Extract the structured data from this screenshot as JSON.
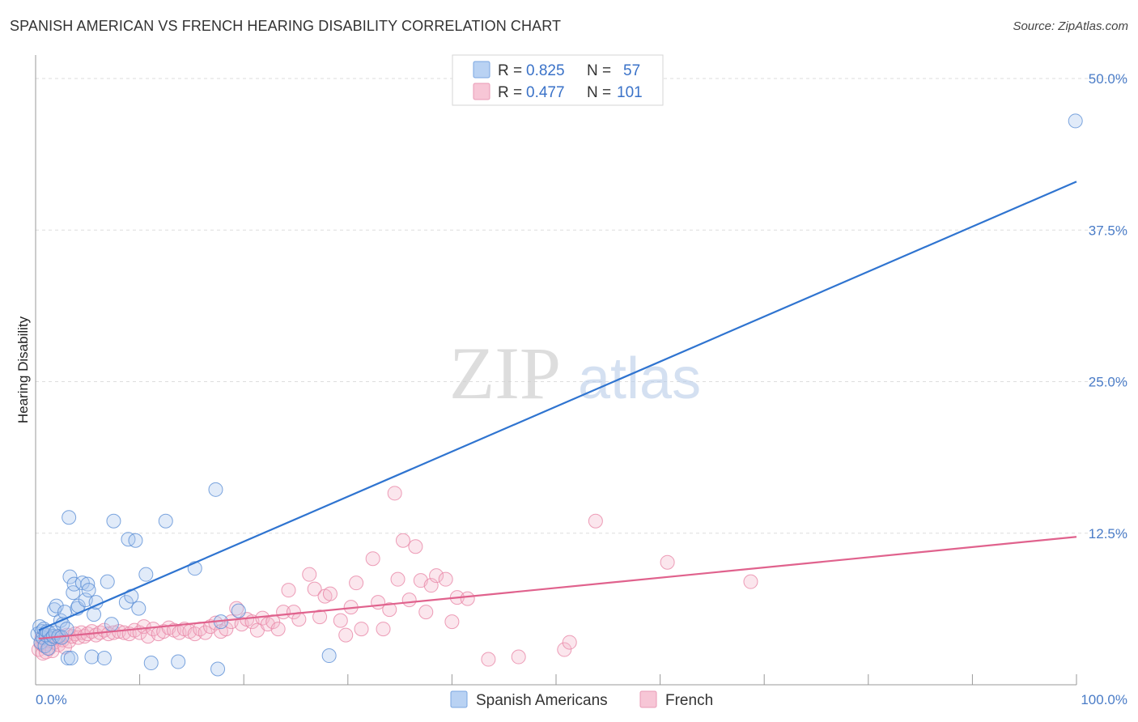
{
  "header": {
    "title": "SPANISH AMERICAN VS FRENCH HEARING DISABILITY CORRELATION CHART",
    "source": "Source: ZipAtlas.com"
  },
  "watermark": {
    "zip": "ZIP",
    "atlas": "atlas"
  },
  "colors": {
    "blue": "#5b8fd6",
    "blue_line": "#2f74d0",
    "pink": "#e886a6",
    "pink_line": "#e0628d",
    "axis_label": "#4a7cc7",
    "grid": "#dddddd"
  },
  "legend": {
    "rows": [
      {
        "r_label": "R =",
        "r_value": "0.825",
        "n_label": "N =",
        "n_value": "57"
      },
      {
        "r_label": "R =",
        "r_value": "0.477",
        "n_label": "N =",
        "n_value": "101"
      }
    ]
  },
  "bottom_legend": [
    "Spanish Americans",
    "French"
  ],
  "chart_data": {
    "type": "scatter",
    "title": "SPANISH AMERICAN VS FRENCH HEARING DISABILITY CORRELATION CHART",
    "xlabel": "",
    "ylabel": "Hearing Disability",
    "xlim": [
      0,
      100
    ],
    "ylim": [
      0,
      52
    ],
    "x_tick_labels": [
      "0.0%",
      "100.0%"
    ],
    "y_ticks": [
      12.5,
      25.0,
      37.5,
      50.0
    ],
    "y_tick_labels": [
      "12.5%",
      "25.0%",
      "37.5%",
      "50.0%"
    ],
    "series": [
      {
        "name": "Spanish Americans",
        "R": 0.825,
        "N": 57,
        "trend": {
          "x": [
            0.3,
            100
          ],
          "y": [
            4.5,
            41.5
          ]
        },
        "points": [
          [
            0.2,
            4.2
          ],
          [
            0.4,
            4.8
          ],
          [
            0.5,
            3.5
          ],
          [
            0.6,
            4.4
          ],
          [
            0.7,
            3.9
          ],
          [
            0.8,
            4.6
          ],
          [
            0.9,
            3.2
          ],
          [
            1.0,
            4.1
          ],
          [
            1.1,
            4.4
          ],
          [
            1.2,
            3.0
          ],
          [
            1.3,
            4.3
          ],
          [
            1.5,
            3.8
          ],
          [
            1.7,
            4.0
          ],
          [
            1.8,
            6.2
          ],
          [
            1.9,
            4.3
          ],
          [
            2.0,
            6.5
          ],
          [
            2.2,
            4.0
          ],
          [
            2.4,
            5.3
          ],
          [
            2.5,
            3.9
          ],
          [
            2.6,
            5.0
          ],
          [
            2.8,
            6.0
          ],
          [
            3.0,
            4.6
          ],
          [
            3.1,
            2.2
          ],
          [
            3.2,
            13.8
          ],
          [
            3.3,
            8.9
          ],
          [
            3.4,
            2.2
          ],
          [
            3.6,
            7.6
          ],
          [
            3.7,
            8.3
          ],
          [
            4.0,
            6.3
          ],
          [
            4.1,
            6.5
          ],
          [
            4.5,
            8.4
          ],
          [
            4.8,
            7.0
          ],
          [
            5.0,
            8.3
          ],
          [
            5.1,
            7.8
          ],
          [
            5.4,
            2.3
          ],
          [
            5.6,
            5.8
          ],
          [
            5.8,
            6.8
          ],
          [
            6.6,
            2.2
          ],
          [
            6.9,
            8.5
          ],
          [
            7.3,
            5.0
          ],
          [
            7.5,
            13.5
          ],
          [
            8.7,
            6.8
          ],
          [
            8.9,
            12.0
          ],
          [
            9.2,
            7.3
          ],
          [
            9.6,
            11.9
          ],
          [
            9.9,
            6.3
          ],
          [
            10.6,
            9.1
          ],
          [
            11.1,
            1.8
          ],
          [
            12.5,
            13.5
          ],
          [
            13.7,
            1.9
          ],
          [
            15.3,
            9.6
          ],
          [
            17.3,
            16.1
          ],
          [
            17.5,
            1.3
          ],
          [
            17.8,
            5.2
          ],
          [
            19.5,
            6.1
          ],
          [
            28.2,
            2.4
          ],
          [
            99.9,
            46.5
          ]
        ]
      },
      {
        "name": "French",
        "R": 0.477,
        "N": 101,
        "trend": {
          "x": [
            0.3,
            100
          ],
          "y": [
            3.8,
            12.2
          ]
        },
        "points": [
          [
            0.3,
            2.9
          ],
          [
            0.5,
            3.4
          ],
          [
            0.6,
            3.9
          ],
          [
            0.7,
            2.6
          ],
          [
            0.8,
            3.2
          ],
          [
            0.9,
            4.0
          ],
          [
            1.0,
            2.7
          ],
          [
            1.1,
            3.4
          ],
          [
            1.3,
            3.0
          ],
          [
            1.4,
            3.6
          ],
          [
            1.6,
            2.8
          ],
          [
            1.8,
            3.5
          ],
          [
            2.0,
            3.9
          ],
          [
            2.2,
            3.3
          ],
          [
            2.4,
            4.0
          ],
          [
            2.6,
            3.7
          ],
          [
            2.8,
            3.1
          ],
          [
            3.0,
            4.1
          ],
          [
            3.2,
            3.6
          ],
          [
            3.5,
            4.0
          ],
          [
            3.8,
            4.2
          ],
          [
            4.1,
            3.9
          ],
          [
            4.4,
            4.3
          ],
          [
            4.7,
            4.0
          ],
          [
            5.0,
            4.2
          ],
          [
            5.4,
            4.4
          ],
          [
            5.8,
            4.1
          ],
          [
            6.2,
            4.3
          ],
          [
            6.6,
            4.5
          ],
          [
            7.0,
            4.2
          ],
          [
            7.5,
            4.3
          ],
          [
            8.0,
            4.4
          ],
          [
            8.5,
            4.3
          ],
          [
            9.0,
            4.2
          ],
          [
            9.5,
            4.5
          ],
          [
            10.0,
            4.3
          ],
          [
            10.4,
            4.8
          ],
          [
            10.8,
            4.0
          ],
          [
            11.3,
            4.6
          ],
          [
            11.8,
            4.2
          ],
          [
            12.3,
            4.4
          ],
          [
            12.8,
            4.7
          ],
          [
            13.3,
            4.5
          ],
          [
            13.8,
            4.3
          ],
          [
            14.3,
            4.6
          ],
          [
            14.8,
            4.4
          ],
          [
            15.3,
            4.2
          ],
          [
            15.8,
            4.6
          ],
          [
            16.3,
            4.3
          ],
          [
            16.8,
            4.8
          ],
          [
            17.3,
            5.1
          ],
          [
            17.8,
            4.4
          ],
          [
            18.3,
            4.6
          ],
          [
            18.8,
            5.2
          ],
          [
            19.3,
            6.3
          ],
          [
            19.8,
            5.0
          ],
          [
            20.3,
            5.4
          ],
          [
            20.8,
            5.2
          ],
          [
            21.3,
            4.5
          ],
          [
            21.8,
            5.5
          ],
          [
            22.3,
            5.0
          ],
          [
            22.8,
            5.2
          ],
          [
            23.3,
            4.6
          ],
          [
            23.8,
            6.0
          ],
          [
            24.3,
            7.8
          ],
          [
            24.8,
            6.0
          ],
          [
            25.3,
            5.4
          ],
          [
            26.3,
            9.1
          ],
          [
            26.8,
            7.9
          ],
          [
            27.3,
            5.6
          ],
          [
            27.8,
            7.3
          ],
          [
            28.3,
            7.5
          ],
          [
            29.3,
            5.3
          ],
          [
            29.8,
            4.1
          ],
          [
            30.3,
            6.4
          ],
          [
            30.8,
            8.4
          ],
          [
            31.3,
            4.6
          ],
          [
            32.4,
            10.4
          ],
          [
            32.9,
            6.8
          ],
          [
            33.4,
            4.6
          ],
          [
            34.0,
            6.2
          ],
          [
            34.5,
            15.8
          ],
          [
            34.8,
            8.7
          ],
          [
            35.3,
            11.9
          ],
          [
            35.9,
            7.0
          ],
          [
            36.5,
            11.4
          ],
          [
            37.0,
            8.6
          ],
          [
            37.5,
            6.0
          ],
          [
            38.0,
            8.2
          ],
          [
            38.5,
            9.0
          ],
          [
            39.4,
            8.7
          ],
          [
            40.0,
            5.2
          ],
          [
            40.5,
            7.2
          ],
          [
            41.5,
            7.1
          ],
          [
            43.5,
            2.1
          ],
          [
            46.4,
            2.3
          ],
          [
            50.8,
            2.9
          ],
          [
            51.3,
            3.5
          ],
          [
            53.8,
            13.5
          ],
          [
            60.7,
            10.1
          ],
          [
            68.7,
            8.5
          ]
        ]
      }
    ]
  }
}
